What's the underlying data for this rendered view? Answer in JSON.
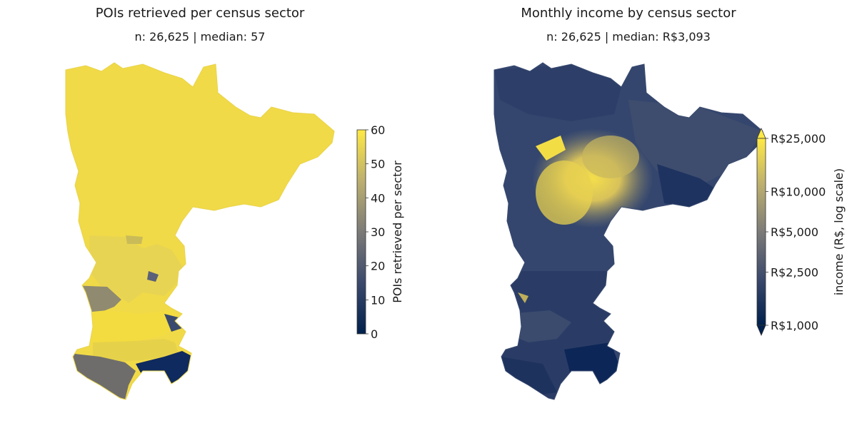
{
  "chart_data": [
    {
      "type": "heatmap",
      "subtype": "choropleth-map",
      "title": "POIs retrieved per census sector",
      "subtitle": "n: 26,625 | median: 57",
      "colorbar": {
        "label": "POIs retrieved per sector",
        "scale": "linear",
        "range": [
          0,
          60
        ],
        "ticks": [
          0,
          10,
          20,
          30,
          40,
          50,
          60
        ],
        "tick_labels": [
          "0",
          "10",
          "20",
          "30",
          "40",
          "50",
          "60"
        ],
        "colormap": "cividis"
      },
      "stats": {
        "n": 26625,
        "median": 57
      }
    },
    {
      "type": "heatmap",
      "subtype": "choropleth-map",
      "title": "Monthly income by census sector",
      "subtitle": "n: 26,625 | median: R$3,093",
      "colorbar": {
        "label": "income (R$, log scale)",
        "scale": "log",
        "range": [
          1000,
          25000
        ],
        "extend": "both",
        "ticks": [
          1000,
          2500,
          5000,
          10000,
          25000
        ],
        "tick_labels": [
          "R$1,000",
          "R$2,500",
          "R$5,000",
          "R$10,000",
          "R$25,000"
        ],
        "colormap": "cividis"
      },
      "stats": {
        "n": 26625,
        "median": 3093
      }
    }
  ],
  "colors": {
    "cividis_low": "#00204d",
    "cividis_mid": "#7c7b78",
    "cividis_high": "#ffe945"
  }
}
